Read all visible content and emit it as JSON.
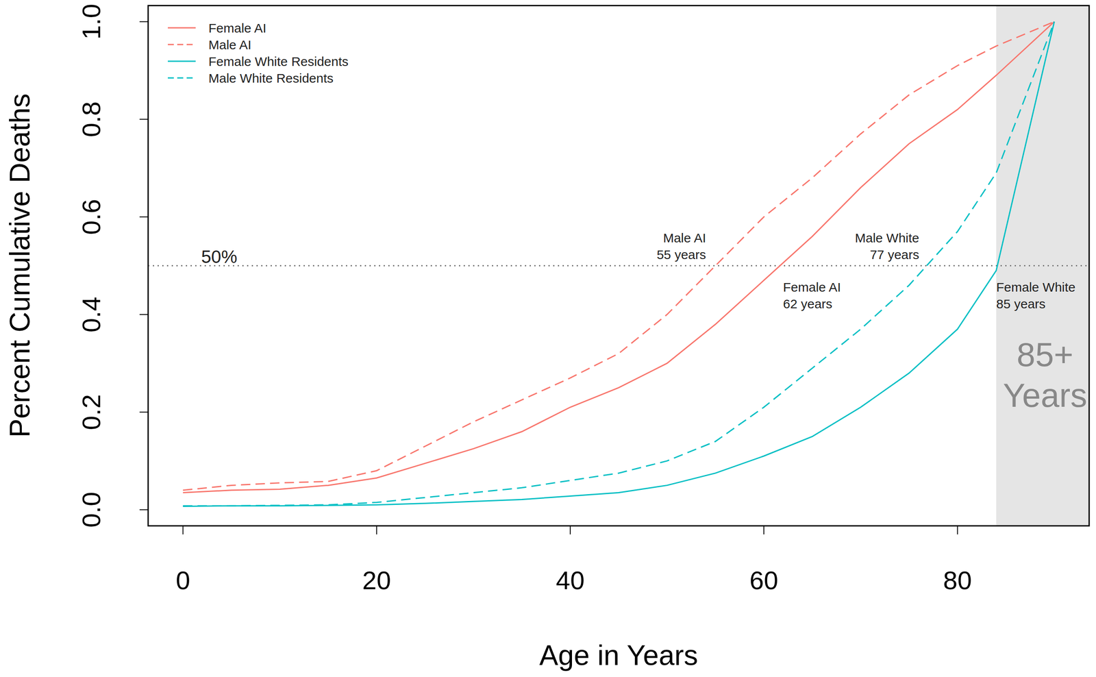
{
  "chart_data": {
    "type": "line",
    "x_label": "Age in Years",
    "y_label": "Percent Cumulative Deaths",
    "x": [
      0,
      5,
      10,
      15,
      20,
      25,
      30,
      35,
      40,
      45,
      50,
      55,
      60,
      65,
      70,
      75,
      80,
      84,
      90
    ],
    "xlim": [
      -3.6,
      93.6
    ],
    "ylim": [
      -0.033,
      1.033
    ],
    "xticks": [
      0,
      20,
      40,
      60,
      80
    ],
    "yticks": [
      {
        "value": 0,
        "label": "0.0"
      },
      0.2,
      0.4,
      0.6,
      0.8,
      {
        "value": 1,
        "label": "1.0"
      }
    ],
    "legend": "upper left",
    "series": [
      {
        "name": "Female AI",
        "color": "#f8766d",
        "line_style": "solid",
        "values": [
          0.035,
          0.04,
          0.042,
          0.05,
          0.065,
          0.095,
          0.125,
          0.16,
          0.21,
          0.25,
          0.3,
          0.38,
          0.47,
          0.56,
          0.66,
          0.75,
          0.82,
          0.89,
          1.0
        ]
      },
      {
        "name": "Male AI",
        "color": "#f8766d",
        "line_style": "dashed",
        "values": [
          0.04,
          0.05,
          0.055,
          0.058,
          0.08,
          0.13,
          0.18,
          0.225,
          0.27,
          0.32,
          0.4,
          0.5,
          0.6,
          0.68,
          0.77,
          0.85,
          0.91,
          0.95,
          1.0
        ]
      },
      {
        "name": "Female White Residents",
        "color": "#00bfc4",
        "line_style": "solid",
        "values": [
          0.007,
          0.008,
          0.008,
          0.009,
          0.01,
          0.013,
          0.017,
          0.021,
          0.028,
          0.035,
          0.05,
          0.075,
          0.11,
          0.15,
          0.21,
          0.28,
          0.37,
          0.49,
          1.0
        ]
      },
      {
        "name": "Male White Residents",
        "color": "#00bfc4",
        "line_style": "dashed",
        "values": [
          0.008,
          0.008,
          0.009,
          0.01,
          0.015,
          0.025,
          0.035,
          0.045,
          0.06,
          0.075,
          0.1,
          0.14,
          0.21,
          0.29,
          0.37,
          0.46,
          0.57,
          0.69,
          1.0
        ]
      }
    ],
    "reference_line": {
      "y": 0.5,
      "label": "50%",
      "line_style": "dotted"
    },
    "shaded_region": {
      "x": [
        84,
        93.6
      ],
      "label": "85+\nYears"
    },
    "annotations": [
      {
        "text": "Male AI\n55 years"
      },
      {
        "text": "Female AI\n62 years"
      },
      {
        "text": "Male White\n77 years"
      },
      {
        "text": "Female White\n85 years"
      }
    ]
  }
}
